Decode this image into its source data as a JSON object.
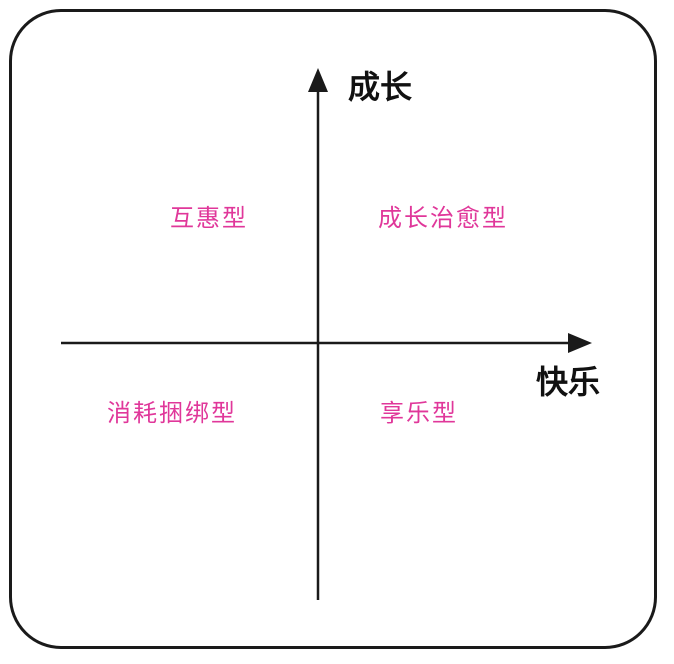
{
  "axes": {
    "y_label": "成长",
    "x_label": "快乐"
  },
  "quadrants": {
    "top_left": "互惠型",
    "top_right": "成长治愈型",
    "bottom_left": "消耗捆绑型",
    "bottom_right": "享乐型"
  },
  "colors": {
    "quadrant_text": "#e0379a",
    "axis_text": "#111111",
    "line": "#1a1a1a"
  }
}
